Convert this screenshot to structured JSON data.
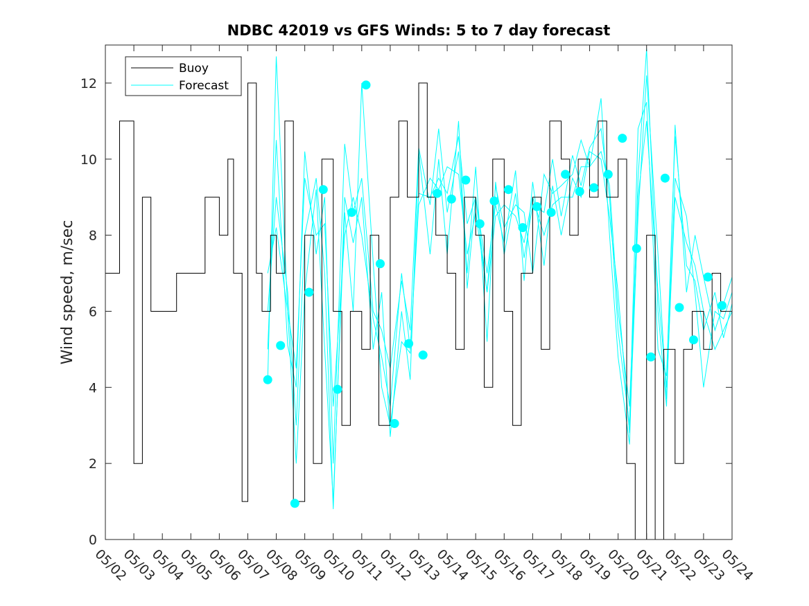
{
  "chart_data": {
    "type": "line",
    "title": "NDBC 42019 vs GFS Winds: 5 to 7 day forecast",
    "xlabel": "",
    "ylabel": "Wind speed, m/sec",
    "xlim": [
      "05/02",
      "05/24"
    ],
    "ylim": [
      0,
      13
    ],
    "x_tick_labels": [
      "05/02",
      "05/03",
      "05/04",
      "05/05",
      "05/06",
      "05/07",
      "05/08",
      "05/09",
      "05/10",
      "05/11",
      "05/12",
      "05/13",
      "05/14",
      "05/15",
      "05/16",
      "05/17",
      "05/18",
      "05/19",
      "05/20",
      "05/21",
      "05/22",
      "05/23",
      "05/24"
    ],
    "y_ticks": [
      0,
      2,
      4,
      6,
      8,
      10,
      12
    ],
    "legend": {
      "position": "top-left",
      "entries": [
        "Buoy",
        "Forecast"
      ]
    },
    "grid": false,
    "colors": {
      "buoy": "#000000",
      "forecast": "#00ffff",
      "axes": "#262626"
    },
    "buoy": {
      "name": "Buoy",
      "times_day": [
        2.0,
        2.5,
        3.0,
        3.3,
        3.6,
        4.0,
        4.5,
        5.0,
        5.5,
        6.0,
        6.3,
        6.5,
        6.8,
        7.0,
        7.3,
        7.5,
        7.8,
        8.0,
        8.3,
        8.6,
        9.0,
        9.3,
        9.6,
        10.0,
        10.3,
        10.6,
        11.0,
        11.3,
        11.6,
        12.0,
        12.3,
        12.6,
        13.0,
        13.3,
        13.6,
        14.0,
        14.3,
        14.6,
        15.0,
        15.3,
        15.6,
        16.0,
        16.3,
        16.6,
        17.0,
        17.3,
        17.6,
        18.0,
        18.3,
        18.6,
        19.0,
        19.3,
        19.6,
        20.0,
        20.3,
        20.6,
        21.0,
        21.3,
        21.6,
        22.0,
        22.3,
        22.6,
        23.0,
        23.3,
        23.6,
        24.0
      ],
      "values": [
        7,
        11,
        2,
        9,
        6,
        6,
        7,
        7,
        9,
        8,
        10,
        7,
        1,
        12,
        7,
        6,
        8,
        7,
        11,
        1,
        8,
        2,
        10,
        6,
        3,
        6,
        5,
        8,
        3,
        9,
        11,
        9,
        12,
        9,
        8,
        7,
        5,
        9,
        8,
        4,
        10,
        6,
        3,
        7,
        9,
        5,
        11,
        10,
        8,
        10,
        9,
        11,
        9,
        10,
        2,
        0,
        8,
        0,
        5,
        2,
        5,
        6,
        5,
        7,
        6,
        7
      ]
    },
    "forecast": {
      "name": "Forecast",
      "runs": [
        {
          "times_day": [
            7.7,
            8.0,
            8.4,
            8.7,
            9.0,
            9.4,
            9.7,
            10.0,
            10.4,
            10.7,
            11.0,
            11.4,
            11.7,
            12.0,
            12.4,
            12.7,
            13.0,
            13.4,
            13.7,
            14.0,
            14.4,
            14.7,
            15.0,
            15.4,
            15.7,
            16.0,
            16.4,
            16.7,
            17.0,
            17.4,
            17.7,
            18.0,
            18.4,
            18.7,
            19.0,
            19.4,
            19.7,
            20.0,
            20.4,
            20.7,
            21.0,
            21.4,
            21.7,
            22.0,
            22.4,
            22.7,
            23.0,
            23.4,
            23.7,
            24.0
          ],
          "values": [
            4.2,
            12.7,
            6.0,
            2.0,
            6.5,
            9.2,
            5.0,
            1.0,
            8.6,
            6.0,
            12.0,
            7.3,
            4.0,
            3.0,
            5.2,
            4.9,
            9.1,
            9.0,
            9.5,
            9.1,
            10.6,
            8.3,
            9.0,
            6.5,
            9.3,
            8.2,
            8.8,
            8.6,
            7.0,
            9.6,
            9.1,
            9.3,
            9.6,
            10.5,
            9.8,
            11.6,
            8.0,
            4.8,
            2.5,
            9.5,
            12.9,
            6.0,
            3.5,
            10.9,
            6.5,
            8.0,
            6.9,
            5.5,
            6.2,
            6.9
          ]
        },
        {
          "times_day": [
            7.7,
            8.0,
            8.4,
            8.7,
            9.0,
            9.4,
            9.7,
            10.0,
            10.4,
            10.7,
            11.0,
            11.4,
            11.7,
            12.0,
            12.4,
            12.7,
            13.0,
            13.4,
            13.7,
            14.0,
            14.4,
            14.7,
            15.0,
            15.4,
            15.7,
            16.0,
            16.4,
            16.7,
            17.0,
            17.4,
            17.7,
            18.0,
            18.4,
            18.7,
            19.0,
            19.4,
            19.7,
            20.0,
            20.4,
            20.7,
            21.0,
            21.4,
            21.7,
            22.0,
            22.4,
            22.7,
            23.0,
            23.4,
            23.7,
            24.0
          ],
          "values": [
            5.0,
            10.5,
            5.1,
            4.0,
            10.2,
            7.5,
            9.0,
            2.0,
            10.4,
            8.6,
            9.5,
            6.0,
            5.5,
            4.5,
            6.8,
            5.5,
            10.3,
            8.8,
            10.8,
            8.6,
            10.2,
            7.0,
            9.8,
            5.2,
            9.4,
            7.5,
            9.1,
            7.4,
            8.8,
            8.6,
            10.0,
            8.5,
            10.1,
            9.3,
            10.3,
            10.8,
            9.0,
            5.5,
            3.0,
            10.8,
            11.5,
            5.0,
            4.3,
            10.6,
            7.2,
            6.8,
            5.5,
            6.5,
            5.3,
            6.2
          ]
        },
        {
          "times_day": [
            7.7,
            8.0,
            8.4,
            8.7,
            9.0,
            9.4,
            9.7,
            10.0,
            10.4,
            10.7,
            11.0,
            11.4,
            11.7,
            12.0,
            12.4,
            12.7,
            13.0,
            13.4,
            13.7,
            14.0,
            14.4,
            14.7,
            15.0,
            15.4,
            15.7,
            16.0,
            16.4,
            16.7,
            17.0,
            17.4,
            17.7,
            18.0,
            18.4,
            18.7,
            19.0,
            19.4,
            19.7,
            20.0,
            20.4,
            20.7,
            21.0,
            21.4,
            21.7,
            22.0,
            22.4,
            22.7,
            23.0,
            23.4,
            23.7,
            24.0
          ],
          "values": [
            6.0,
            9.0,
            6.5,
            3.0,
            8.0,
            9.5,
            7.0,
            0.8,
            9.0,
            7.8,
            9.0,
            5.0,
            6.5,
            2.7,
            6.0,
            4.2,
            10.2,
            7.5,
            10.0,
            7.5,
            11.0,
            6.6,
            9.0,
            7.0,
            8.8,
            7.8,
            9.7,
            6.8,
            9.4,
            7.2,
            9.3,
            8.0,
            9.5,
            9.0,
            10.2,
            10.0,
            8.5,
            6.5,
            2.8,
            8.5,
            12.2,
            7.5,
            3.7,
            9.5,
            8.5,
            6.5,
            4.0,
            6.0,
            5.8,
            6.5
          ]
        },
        {
          "times_day": [
            7.7,
            8.0,
            8.4,
            8.7,
            9.0,
            9.4,
            9.7,
            10.0,
            10.4,
            10.7,
            11.0,
            11.4,
            11.7,
            12.0,
            12.4,
            12.7,
            13.0,
            13.4,
            13.7,
            14.0,
            14.4,
            14.7,
            15.0,
            15.4,
            15.7,
            16.0,
            16.4,
            16.7,
            17.0,
            17.4,
            17.7,
            18.0,
            18.4,
            18.7,
            19.0,
            19.4,
            19.7,
            20.0,
            20.4,
            20.7,
            21.0,
            21.4,
            21.7,
            22.0,
            22.4,
            22.7,
            23.0,
            23.4,
            23.7,
            24.0
          ],
          "values": [
            7.0,
            8.2,
            6.0,
            4.5,
            9.5,
            8.0,
            8.3,
            3.5,
            8.0,
            9.0,
            8.0,
            5.8,
            4.8,
            3.5,
            7.0,
            5.0,
            8.8,
            9.5,
            9.2,
            9.8,
            9.6,
            7.5,
            8.6,
            6.5,
            8.5,
            8.8,
            8.5,
            7.8,
            9.0,
            8.0,
            8.8,
            9.0,
            9.0,
            9.8,
            9.8,
            10.2,
            9.3,
            6.0,
            3.5,
            9.0,
            11.0,
            6.5,
            4.0,
            9.0,
            7.8,
            7.2,
            6.0,
            5.0,
            5.5,
            6.0
          ]
        }
      ],
      "daily_marker_times_day": [
        7.7,
        8.15,
        8.65,
        9.15,
        9.65,
        10.15,
        10.65,
        11.15,
        11.65,
        12.15,
        12.65,
        13.15,
        13.65,
        14.15,
        14.65,
        15.15,
        15.65,
        16.15,
        16.65,
        17.15,
        17.65,
        18.15,
        18.65,
        19.15,
        19.65,
        20.15,
        20.65,
        21.15,
        21.65,
        22.15,
        22.65,
        23.15,
        23.65
      ],
      "daily_marker_values": [
        4.2,
        5.1,
        0.95,
        6.5,
        9.2,
        3.95,
        8.6,
        11.95,
        7.25,
        3.05,
        5.15,
        4.85,
        9.1,
        8.95,
        9.45,
        8.3,
        8.9,
        9.2,
        8.2,
        8.75,
        8.6,
        9.6,
        9.15,
        9.25,
        9.6,
        10.55,
        7.65,
        4.8,
        9.5,
        6.1,
        5.25,
        6.9,
        6.15
      ]
    }
  }
}
